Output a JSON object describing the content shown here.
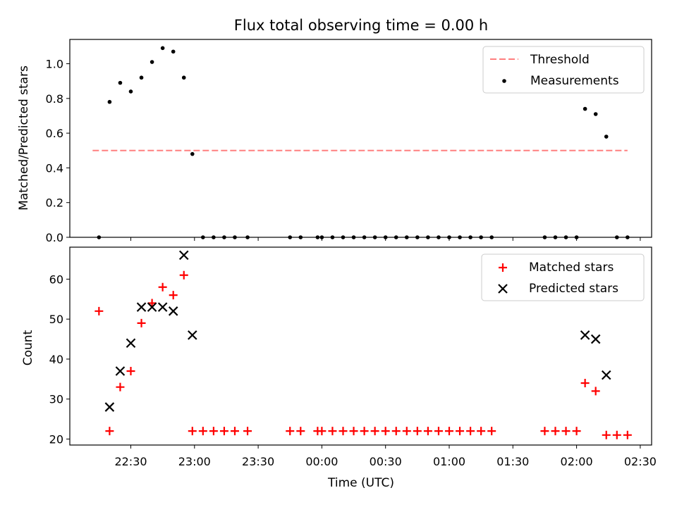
{
  "chart_data": [
    {
      "type": "scatter",
      "title": "Flux total observing time = 0.00 h",
      "xlabel": "",
      "ylabel": "Matched/Predicted stars",
      "ylim": [
        0.0,
        1.14
      ],
      "yticks": [
        0.0,
        0.2,
        0.4,
        0.6,
        0.8,
        1.0
      ],
      "ytick_labels": [
        "0.0",
        "0.2",
        "0.4",
        "0.6",
        "0.8",
        "1.0"
      ],
      "xticks_shown_labels": false,
      "legend_position": "top-right",
      "threshold": {
        "name": "Threshold",
        "value": 0.5,
        "x": [
          22.2,
          2.4
        ],
        "color": "#ff7f7f",
        "style": "dashed"
      },
      "series": [
        {
          "name": "Measurements",
          "color": "#000000",
          "marker": "dot",
          "x": [
            "22:15",
            "22:20",
            "22:25",
            "22:30",
            "22:35",
            "22:40",
            "22:45",
            "22:50",
            "22:55",
            "22:59",
            "23:04",
            "23:09",
            "23:14",
            "23:19",
            "23:25",
            "23:45",
            "23:50",
            "23:58",
            "24:00",
            "24:05",
            "24:10",
            "24:15",
            "24:20",
            "24:25",
            "24:30",
            "24:35",
            "24:40",
            "24:45",
            "24:50",
            "24:55",
            "25:00",
            "25:05",
            "25:10",
            "25:15",
            "25:20",
            "25:45",
            "25:50",
            "25:55",
            "26:00",
            "26:04",
            "26:09",
            "26:14",
            "26:19",
            "26:24"
          ],
          "y": [
            0.0,
            0.78,
            0.89,
            0.84,
            0.92,
            1.01,
            1.09,
            1.07,
            0.92,
            0.48,
            0.0,
            0.0,
            0.0,
            0.0,
            0.0,
            0.0,
            0.0,
            0.0,
            0.0,
            0.0,
            0.0,
            0.0,
            0.0,
            0.0,
            0.0,
            0.0,
            0.0,
            0.0,
            0.0,
            0.0,
            0.0,
            0.0,
            0.0,
            0.0,
            0.0,
            0.0,
            0.0,
            0.0,
            0.0,
            0.74,
            0.71,
            0.58,
            0.0,
            0.0
          ]
        }
      ]
    },
    {
      "type": "scatter",
      "title": "",
      "xlabel": "Time (UTC)",
      "ylabel": "Count",
      "ylim": [
        18.5,
        68.0
      ],
      "yticks": [
        20,
        30,
        40,
        50,
        60
      ],
      "ytick_labels": [
        "20",
        "30",
        "40",
        "50",
        "60"
      ],
      "xticks": [
        "22:30",
        "23:00",
        "23:30",
        "24:00",
        "24:30",
        "25:00",
        "25:30",
        "26:00",
        "26:30"
      ],
      "xtick_labels": [
        "22:30",
        "23:00",
        "23:30",
        "00:00",
        "00:30",
        "01:00",
        "01:30",
        "02:00",
        "02:30"
      ],
      "legend_position": "top-right",
      "series": [
        {
          "name": "Matched stars",
          "color": "#ff0000",
          "marker": "plus",
          "x": [
            "22:15",
            "22:20",
            "22:25",
            "22:30",
            "22:35",
            "22:40",
            "22:45",
            "22:50",
            "22:55",
            "22:59",
            "23:04",
            "23:09",
            "23:14",
            "23:19",
            "23:25",
            "23:45",
            "23:50",
            "23:58",
            "24:00",
            "24:05",
            "24:10",
            "24:15",
            "24:20",
            "24:25",
            "24:30",
            "24:35",
            "24:40",
            "24:45",
            "24:50",
            "24:55",
            "25:00",
            "25:05",
            "25:10",
            "25:15",
            "25:20",
            "25:45",
            "25:50",
            "25:55",
            "26:00",
            "26:04",
            "26:09",
            "26:14",
            "26:19",
            "26:24"
          ],
          "y": [
            52,
            22,
            33,
            37,
            49,
            54,
            58,
            56,
            61,
            22,
            22,
            22,
            22,
            22,
            22,
            22,
            22,
            22,
            22,
            22,
            22,
            22,
            22,
            22,
            22,
            22,
            22,
            22,
            22,
            22,
            22,
            22,
            22,
            22,
            22,
            22,
            22,
            22,
            22,
            34,
            32,
            21,
            21,
            21
          ]
        },
        {
          "name": "Predicted stars",
          "color": "#000000",
          "marker": "cross",
          "x": [
            "22:20",
            "22:25",
            "22:30",
            "22:35",
            "22:40",
            "22:45",
            "22:50",
            "22:55",
            "22:59",
            "26:04",
            "26:09",
            "26:14"
          ],
          "y": [
            28,
            37,
            44,
            53,
            53,
            53,
            52,
            66,
            46,
            46,
            45,
            36
          ]
        }
      ]
    }
  ]
}
